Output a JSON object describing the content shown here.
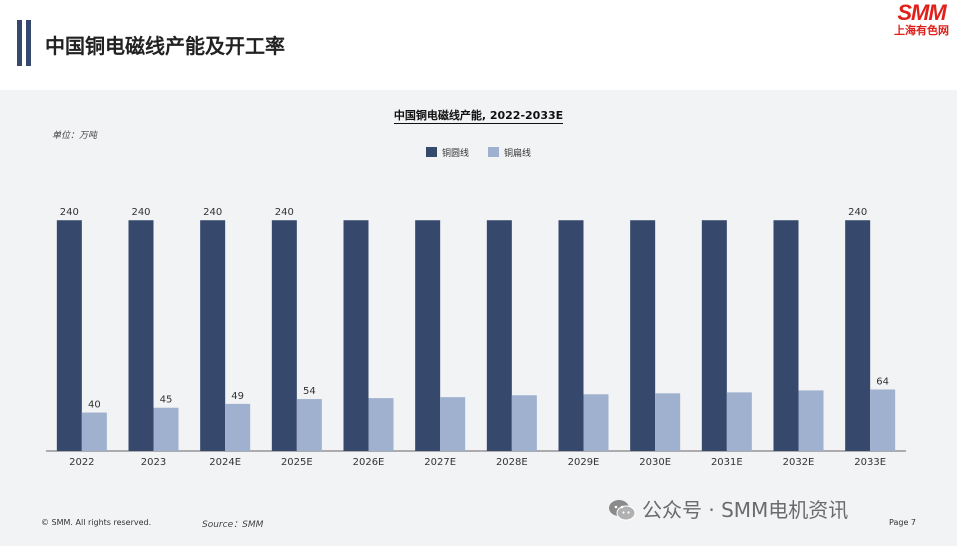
{
  "header": {
    "title": "中国铜电磁线产能及开工率",
    "logo_main": "SMM",
    "logo_sub": "上海有色网"
  },
  "chart_data": {
    "type": "bar",
    "title": "中国铜电磁线产能, 2022-2033E",
    "unit_label": "单位：万吨",
    "categories": [
      "2022",
      "2023",
      "2024E",
      "2025E",
      "2026E",
      "2027E",
      "2028E",
      "2029E",
      "2030E",
      "2031E",
      "2032E",
      "2033E"
    ],
    "series": [
      {
        "name": "铜圆线",
        "color": "#36486b",
        "values": [
          240,
          240,
          240,
          240,
          240,
          240,
          240,
          240,
          240,
          240,
          240,
          240
        ],
        "labels": [
          "240",
          "240",
          "240",
          "240",
          "",
          "",
          "",
          "",
          "",
          "",
          "",
          "240"
        ]
      },
      {
        "name": "铜扁线",
        "color": "#9fb1cf",
        "values": [
          40,
          45,
          49,
          54,
          55,
          56,
          58,
          59,
          60,
          61,
          63,
          64
        ],
        "labels": [
          "40",
          "45",
          "49",
          "54",
          "",
          "",
          "",
          "",
          "",
          "",
          "",
          "64"
        ]
      }
    ],
    "ylim": [
      0,
      260
    ],
    "legend_position": "top-center",
    "grid": false
  },
  "footer": {
    "copyright": "© SMM.  All rights reserved.",
    "source": "Source：SMM",
    "page": "Page 7",
    "watermark": "公众号 · SMM电机资讯"
  }
}
